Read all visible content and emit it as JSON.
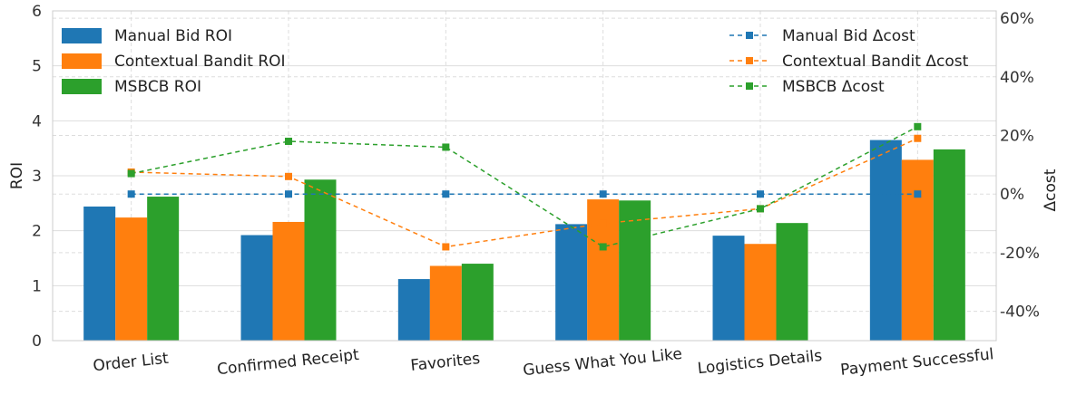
{
  "chart_data": {
    "type": "bar",
    "categories": [
      "Order List",
      "Confirmed Receipt",
      "Favorites",
      "Guess What You Like",
      "Logistics Details",
      "Payment Successful"
    ],
    "ylabel": "ROI",
    "y2label": "Δcost",
    "ylim": [
      0,
      6
    ],
    "y2lim": [
      -50,
      62.5
    ],
    "yticks": [
      "0",
      "1",
      "2",
      "3",
      "4",
      "5",
      "6"
    ],
    "y2ticks": [
      "-40%",
      "-20%",
      "0%",
      "20%",
      "40%",
      "60%"
    ],
    "y2tick_values": [
      -40,
      -20,
      0,
      20,
      40,
      60
    ],
    "grid": true,
    "series": [
      {
        "name": "Manual Bid ROI",
        "color": "#1f77b4",
        "values": [
          2.44,
          1.92,
          1.12,
          2.12,
          1.91,
          3.65
        ]
      },
      {
        "name": "Contextual Bandit ROI",
        "color": "#ff7f0e",
        "values": [
          2.24,
          2.16,
          1.36,
          2.57,
          1.76,
          3.29
        ]
      },
      {
        "name": "MSBCB ROI",
        "color": "#2ca02c",
        "values": [
          2.62,
          2.93,
          1.4,
          2.55,
          2.14,
          3.48
        ]
      }
    ],
    "line_series": [
      {
        "name": "Manual Bid Δcost",
        "color": "#1f77b4",
        "values": [
          0,
          0,
          0,
          0,
          0,
          0
        ]
      },
      {
        "name": "Contextual Bandit Δcost",
        "color": "#ff7f0e",
        "values": [
          7.5,
          6,
          -18,
          -10,
          -5,
          19
        ]
      },
      {
        "name": "MSBCB Δcost",
        "color": "#2ca02c",
        "values": [
          7,
          18,
          16,
          -18,
          -5,
          23
        ]
      }
    ],
    "legend_bars_position": "top-left",
    "legend_lines_position": "top-right"
  }
}
